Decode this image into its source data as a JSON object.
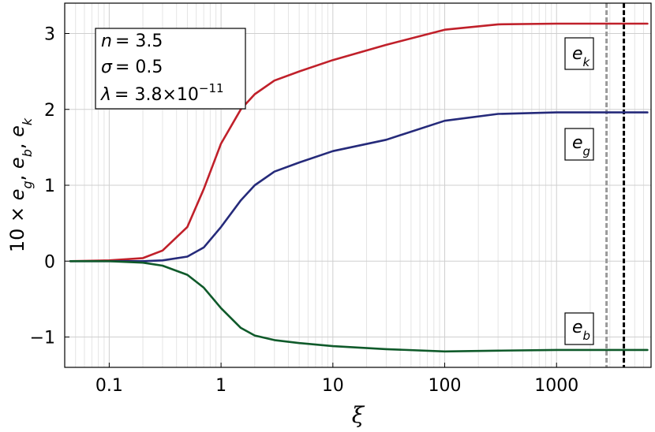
{
  "chart_data": {
    "type": "line",
    "xlabel": "ξ",
    "ylabel": "10 × e_g, e_b, e_k",
    "x_scale": "log",
    "xlim": [
      0.04,
      7000
    ],
    "ylim": [
      -1.4,
      3.4
    ],
    "x_ticks": [
      0.1,
      1,
      10,
      100,
      1000
    ],
    "x_tick_labels": [
      "0.1",
      "1",
      "10",
      "100",
      "1000"
    ],
    "y_ticks": [
      -1,
      0,
      1,
      2,
      3
    ],
    "y_tick_labels": [
      "−1",
      "0",
      "1",
      "2",
      "3"
    ],
    "grid": true,
    "annotation": {
      "n_label": "n",
      "n_value": "= 3.5",
      "sigma_label": "σ",
      "sigma_value": "= 0.5",
      "lambda_label": "λ",
      "lambda_value": "= 3.8×10",
      "lambda_exp": "−11"
    },
    "vlines": [
      {
        "x": 2800,
        "color": "#9a9a9a",
        "style": "dashed"
      },
      {
        "x": 4000,
        "color": "#000000",
        "style": "dashed"
      }
    ],
    "series": [
      {
        "name": "e_k",
        "label_main": "e",
        "label_sub": "k",
        "color": "#c0202a",
        "x": [
          0.045,
          0.1,
          0.2,
          0.3,
          0.5,
          0.7,
          1,
          1.5,
          2,
          3,
          5,
          10,
          30,
          100,
          300,
          1000,
          6500
        ],
        "y": [
          0,
          0.01,
          0.04,
          0.14,
          0.45,
          0.95,
          1.55,
          2.0,
          2.2,
          2.38,
          2.5,
          2.65,
          2.85,
          3.05,
          3.12,
          3.13,
          3.13
        ]
      },
      {
        "name": "e_g",
        "label_main": "e",
        "label_sub": "g",
        "color": "#252a7a",
        "x": [
          0.045,
          0.1,
          0.2,
          0.3,
          0.5,
          0.7,
          1,
          1.5,
          2,
          3,
          5,
          10,
          30,
          100,
          300,
          1000,
          6500
        ],
        "y": [
          0,
          0,
          0,
          0.01,
          0.06,
          0.18,
          0.45,
          0.8,
          1.0,
          1.18,
          1.3,
          1.45,
          1.6,
          1.85,
          1.94,
          1.96,
          1.96
        ]
      },
      {
        "name": "e_b",
        "label_main": "e",
        "label_sub": "b",
        "color": "#0f5a2a",
        "x": [
          0.045,
          0.1,
          0.2,
          0.3,
          0.5,
          0.7,
          1,
          1.5,
          2,
          3,
          5,
          10,
          30,
          100,
          300,
          1000,
          6500
        ],
        "y": [
          0,
          0,
          -0.02,
          -0.06,
          -0.18,
          -0.35,
          -0.62,
          -0.88,
          -0.98,
          -1.04,
          -1.08,
          -1.12,
          -1.16,
          -1.19,
          -1.18,
          -1.17,
          -1.17
        ]
      }
    ]
  }
}
